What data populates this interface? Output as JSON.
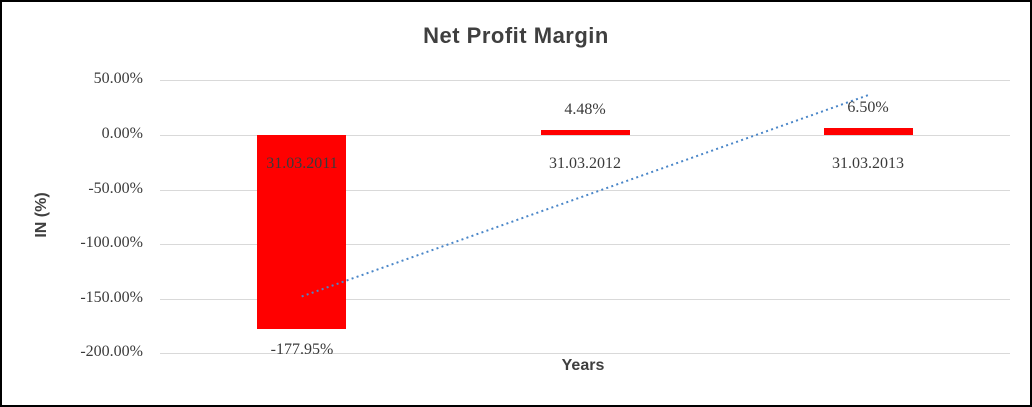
{
  "chart_data": {
    "type": "bar",
    "title": "Net Profit Margin",
    "xlabel": "Years",
    "ylabel": "IN (%)",
    "categories": [
      "31.03.2011",
      "31.03.2012",
      "31.03.2013"
    ],
    "values": [
      -177.95,
      4.48,
      6.5
    ],
    "value_labels": [
      "-177.95%",
      "4.48%",
      "6.50%"
    ],
    "ytick_values": [
      50,
      0,
      -50,
      -100,
      -150,
      -200
    ],
    "ytick_labels": [
      "50.00%",
      "0.00%",
      "-50.00%",
      "-100.00%",
      "-150.00%",
      "-200.00%"
    ],
    "ylim": [
      -200,
      50
    ],
    "grid": true,
    "legend_position": "none",
    "bar_color": "#ff0000",
    "gridline_color": "#d9d9d9",
    "text_color": "#3a3a3a",
    "title_color": "#3f3f3f",
    "trendline": {
      "type": "linear",
      "style": "dotted",
      "color": "#4a86c8"
    }
  }
}
